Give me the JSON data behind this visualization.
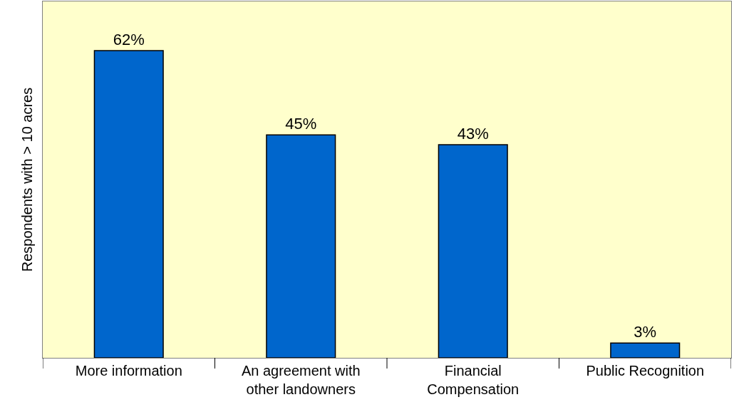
{
  "chart_data": {
    "type": "bar",
    "ylabel": "Respondents with > 10 acres",
    "categories": [
      "More information",
      "An agreement with other landowners",
      "Financial Compensation",
      "Public Recognition"
    ],
    "values": [
      62,
      45,
      43,
      3
    ],
    "color": "#0066cc",
    "value_labels": [
      "62%",
      "45%",
      "43%",
      "3%"
    ]
  }
}
